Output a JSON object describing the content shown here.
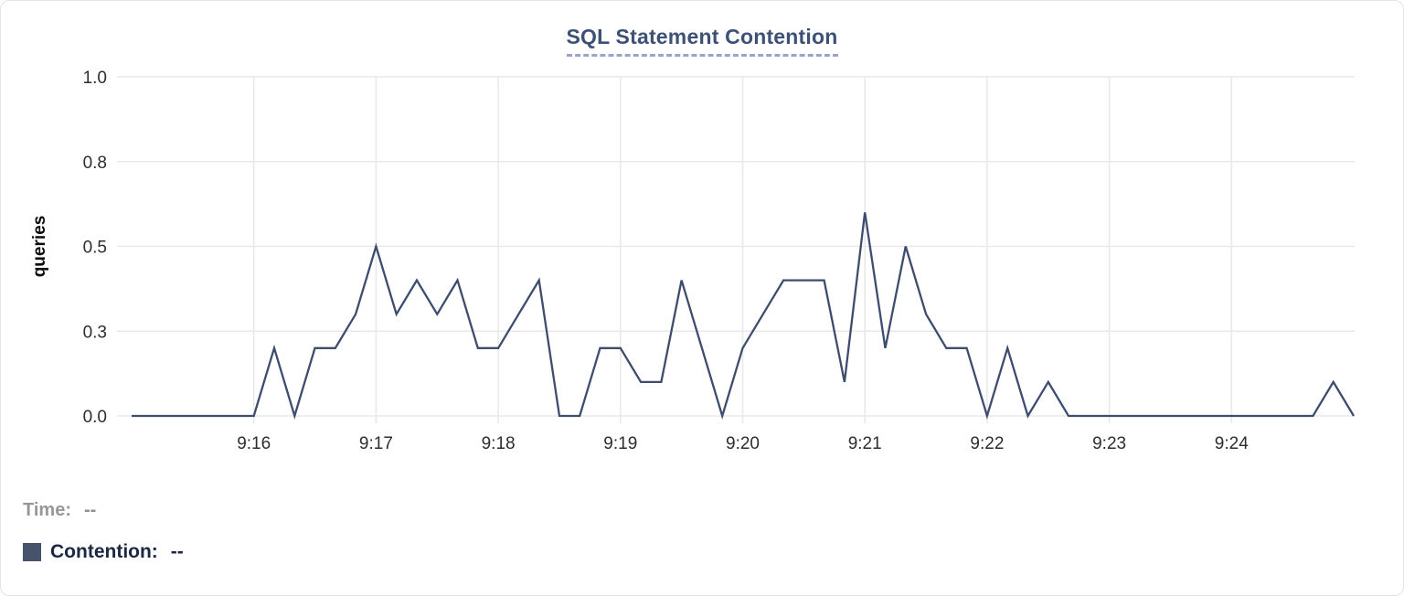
{
  "header": {
    "title": "SQL Statement Contention"
  },
  "legend": {
    "time_label": "Time:",
    "time_value": "--",
    "series_label": "Contention:",
    "series_value": "--"
  },
  "colors": {
    "series_line": "#3e4d6e",
    "legend_swatch": "#47536d",
    "title_text": "#3d5175",
    "title_underline": "#99a3d0",
    "gridline": "#e9e9eb",
    "tick_text": "#2d2d30",
    "axis_title_text": "#0c0c0d"
  },
  "chart_data": {
    "type": "line",
    "title": "SQL Statement Contention",
    "xlabel": "",
    "ylabel": "queries",
    "ylim": [
      0,
      1
    ],
    "grid": true,
    "legend_position": "bottom-left",
    "y_ticks": [
      {
        "value": 1.0,
        "label": "1.0"
      },
      {
        "value": 0.75,
        "label": "0.8"
      },
      {
        "value": 0.5,
        "label": "0.5"
      },
      {
        "value": 0.25,
        "label": "0.3"
      },
      {
        "value": 0.0,
        "label": "0.0"
      }
    ],
    "x_ticks": [
      {
        "label": "9:16",
        "time": "9:16:00"
      },
      {
        "label": "9:17",
        "time": "9:17:00"
      },
      {
        "label": "9:18",
        "time": "9:18:00"
      },
      {
        "label": "9:19",
        "time": "9:19:00"
      },
      {
        "label": "9:20",
        "time": "9:20:00"
      },
      {
        "label": "9:21",
        "time": "9:21:00"
      },
      {
        "label": "9:22",
        "time": "9:22:00"
      },
      {
        "label": "9:23",
        "time": "9:23:00"
      },
      {
        "label": "9:24",
        "time": "9:24:00"
      }
    ],
    "x_domain": [
      "9:15:00",
      "9:25:00"
    ],
    "sample_interval_seconds": 10,
    "series": [
      {
        "name": "Contention",
        "unit": "queries",
        "start_time": "9:15:00",
        "values": [
          0,
          0,
          0,
          0,
          0,
          0,
          0,
          0.2,
          0,
          0.2,
          0.2,
          0.3,
          0.5,
          0.3,
          0.4,
          0.3,
          0.4,
          0.2,
          0.2,
          0.3,
          0.4,
          0,
          0,
          0.2,
          0.2,
          0.1,
          0.1,
          0.4,
          0.2,
          0,
          0.2,
          0.3,
          0.4,
          0.4,
          0.4,
          0.1,
          0.6,
          0.2,
          0.5,
          0.3,
          0.2,
          0.2,
          0,
          0.2,
          0,
          0.1,
          0,
          0,
          0,
          0,
          0,
          0,
          0,
          0,
          0,
          0,
          0,
          0,
          0,
          0.1,
          0
        ]
      }
    ]
  }
}
